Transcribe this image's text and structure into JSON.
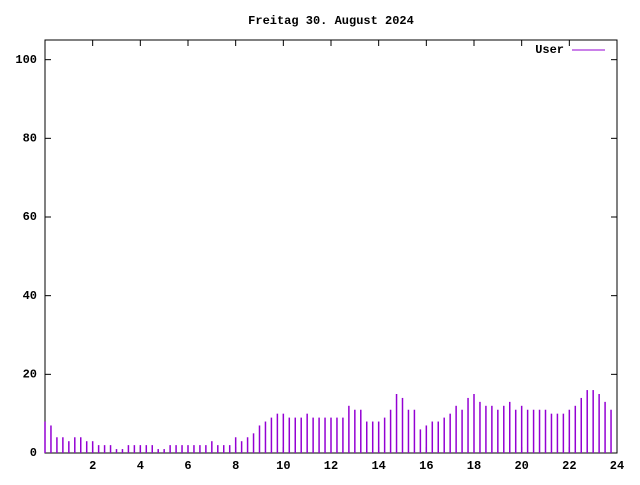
{
  "chart_data": {
    "type": "impulse",
    "title": "Freitag 30. August 2024",
    "x": [
      0,
      0.25,
      0.5,
      0.75,
      1,
      1.25,
      1.5,
      1.75,
      2,
      2.25,
      2.5,
      2.75,
      3,
      3.25,
      3.5,
      3.75,
      4,
      4.25,
      4.5,
      4.75,
      5,
      5.25,
      5.5,
      5.75,
      6,
      6.25,
      6.5,
      6.75,
      7,
      7.25,
      7.5,
      7.75,
      8,
      8.25,
      8.5,
      8.75,
      9,
      9.25,
      9.5,
      9.75,
      10,
      10.25,
      10.5,
      10.75,
      11,
      11.25,
      11.5,
      11.75,
      12,
      12.25,
      12.5,
      12.75,
      13,
      13.25,
      13.5,
      13.75,
      14,
      14.25,
      14.5,
      14.75,
      15,
      15.25,
      15.5,
      15.75,
      16,
      16.25,
      16.5,
      16.75,
      17,
      17.25,
      17.5,
      17.75,
      18,
      18.25,
      18.5,
      18.75,
      19,
      19.25,
      19.5,
      19.75,
      20,
      20.25,
      20.5,
      20.75,
      21,
      21.25,
      21.5,
      21.75,
      22,
      22.25,
      22.5,
      22.75,
      23,
      23.25,
      23.5,
      23.75
    ],
    "series": [
      {
        "name": "User",
        "color": "#9400d3",
        "values": [
          8,
          7,
          4,
          4,
          3,
          4,
          4,
          3,
          3,
          2,
          2,
          2,
          1,
          1,
          2,
          2,
          2,
          2,
          2,
          1,
          1,
          2,
          2,
          2,
          2,
          2,
          2,
          2,
          3,
          2,
          2,
          2,
          4,
          3,
          4,
          5,
          7,
          8,
          9,
          10,
          10,
          9,
          9,
          9,
          10,
          9,
          9,
          9,
          9,
          9,
          9,
          12,
          11,
          11,
          8,
          8,
          8,
          9,
          11,
          15,
          14,
          11,
          11,
          6,
          7,
          8,
          8,
          9,
          10,
          12,
          11,
          14,
          15,
          13,
          12,
          12,
          11,
          12,
          13,
          11,
          12,
          11,
          11,
          11,
          11,
          10,
          10,
          10,
          11,
          12,
          14,
          16,
          16,
          15,
          13,
          11
        ]
      }
    ],
    "xlim": [
      0,
      24
    ],
    "xticks": [
      2,
      4,
      6,
      8,
      10,
      12,
      14,
      16,
      18,
      20,
      22,
      24
    ],
    "ylim": [
      0,
      105
    ],
    "yticks": [
      0,
      20,
      40,
      60,
      80,
      100
    ],
    "legend": "top-right"
  }
}
